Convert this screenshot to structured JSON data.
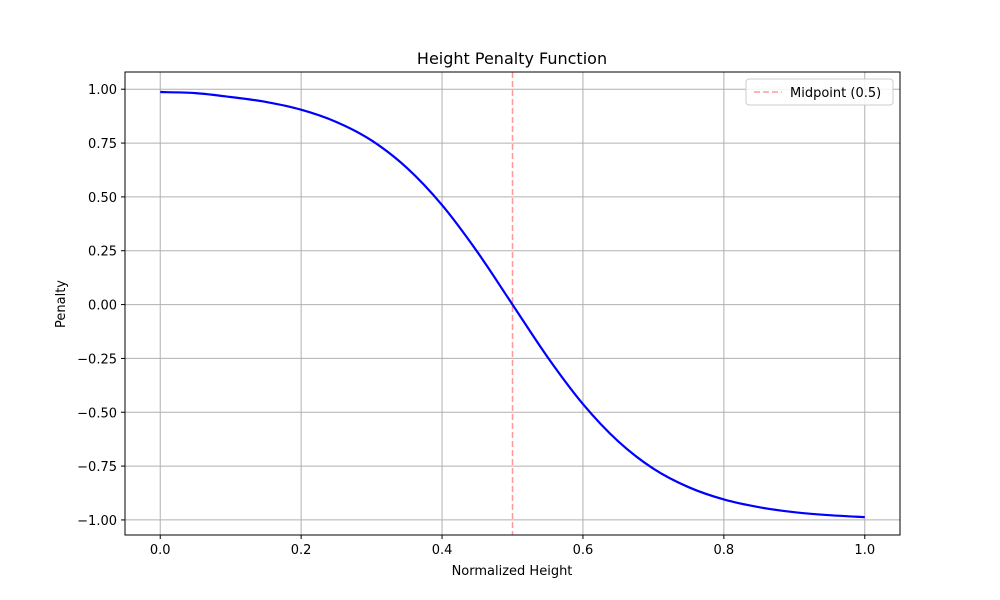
{
  "chart_data": {
    "type": "line",
    "title": "Height Penalty Function",
    "xlabel": "Normalized Height",
    "ylabel": "Penalty",
    "xlim": [
      -0.05,
      1.05
    ],
    "ylim": [
      -1.07,
      1.08
    ],
    "x_ticks": [
      0.0,
      0.2,
      0.4,
      0.6,
      0.8,
      1.0
    ],
    "x_tick_labels": [
      "0.0",
      "0.2",
      "0.4",
      "0.6",
      "0.8",
      "1.0"
    ],
    "y_ticks": [
      1.0,
      0.75,
      0.5,
      0.25,
      0.0,
      -0.25,
      -0.5,
      -0.75,
      -1.0
    ],
    "y_tick_labels": [
      "1.00",
      "0.75",
      "0.50",
      "0.25",
      "0.00",
      "−0.25",
      "−0.50",
      "−0.75",
      "−1.00"
    ],
    "grid": true,
    "legend_position": "top-right",
    "series": [
      {
        "color": "#0000ff",
        "x": [
          0.0,
          0.05,
          0.1,
          0.15,
          0.2,
          0.25,
          0.3,
          0.35,
          0.4,
          0.45,
          0.5,
          0.55,
          0.6,
          0.65,
          0.7,
          0.75,
          0.8,
          0.85,
          0.9,
          0.95,
          1.0
        ],
        "y": [
          0.987,
          0.982,
          0.964,
          0.941,
          0.905,
          0.848,
          0.762,
          0.635,
          0.462,
          0.245,
          0.0,
          -0.245,
          -0.462,
          -0.635,
          -0.762,
          -0.848,
          -0.905,
          -0.941,
          -0.964,
          -0.978,
          -0.987
        ]
      }
    ],
    "reference_lines": [
      {
        "name": "Midpoint (0.5)",
        "orientation": "vertical",
        "x": 0.5,
        "color": "#ff9999",
        "style": "dashed"
      }
    ]
  }
}
